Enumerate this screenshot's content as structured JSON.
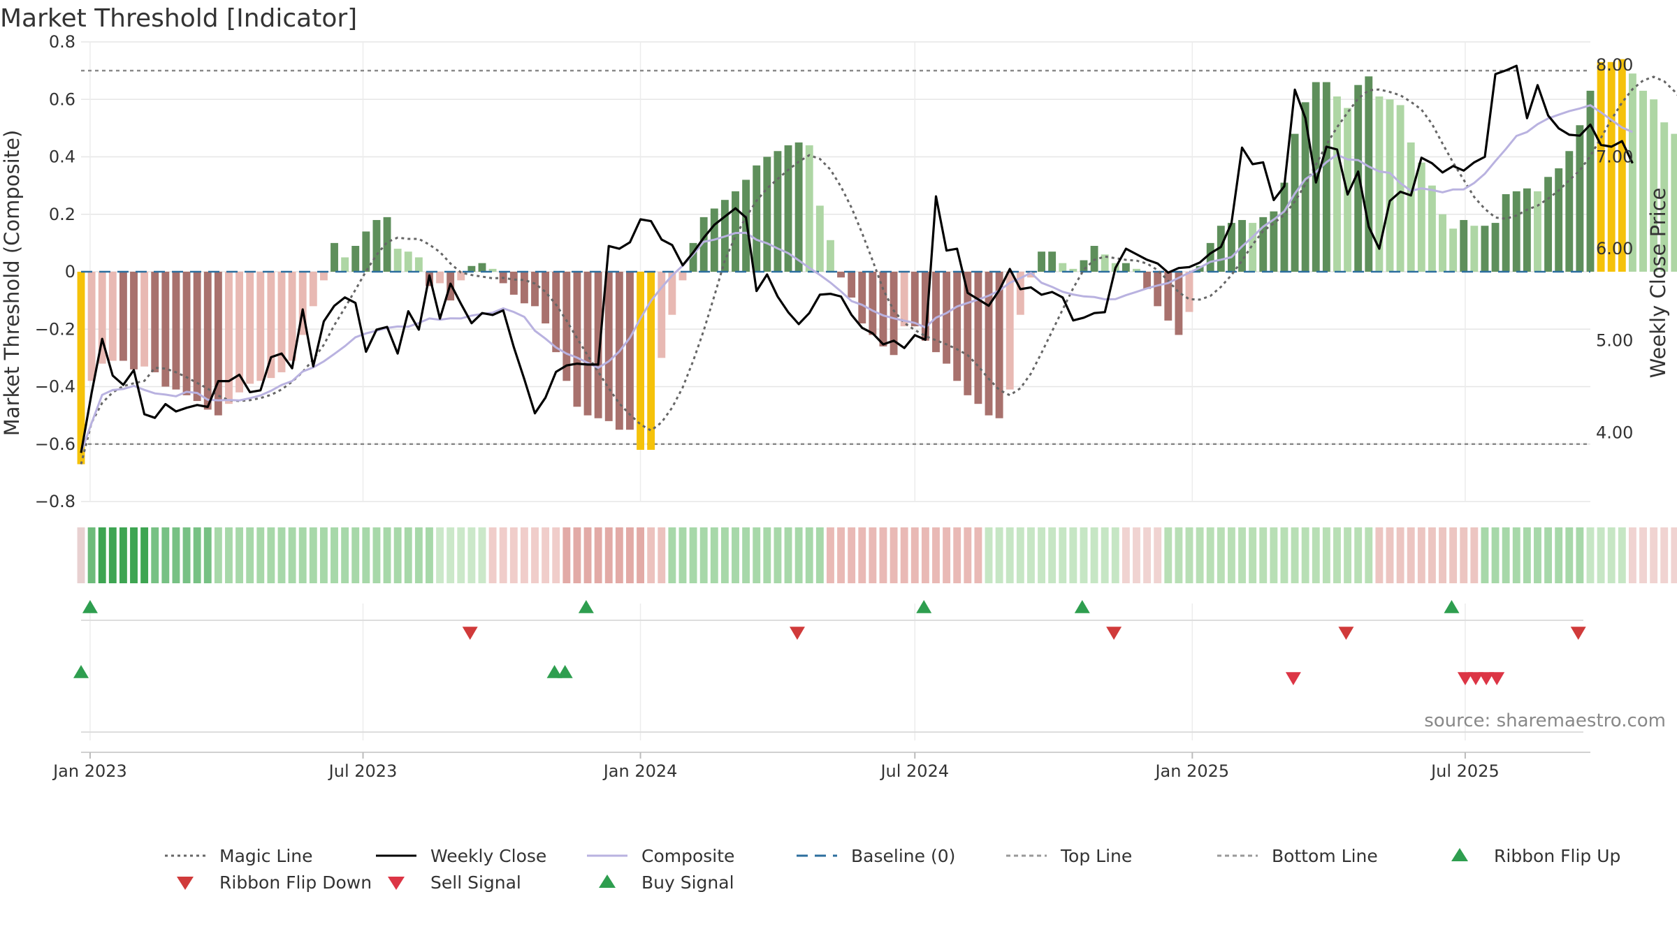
{
  "chart_data": {
    "type": "bar",
    "title": "Market Threshold [Indicator]",
    "ylabel": "Market Threshold (Composite)",
    "y2label": "Weekly Close Price",
    "source": "source: sharemaestro.com",
    "ylim": [
      -0.8,
      0.8
    ],
    "y2lim": [
      3.25,
      8.25
    ],
    "y_ticks": [
      0.8,
      0.6,
      0.4,
      0.2,
      0,
      -0.2,
      -0.4,
      -0.6,
      -0.8
    ],
    "y_tick_labels": [
      "0.8",
      "0.6",
      "0.4",
      "0.2",
      "0",
      "−0.2",
      "−0.4",
      "−0.6",
      "−0.8"
    ],
    "y2_ticks": [
      8.0,
      7.0,
      6.0,
      5.0,
      4.0
    ],
    "y2_tick_labels": [
      "8.00",
      "7.00",
      "6.00",
      "5.00",
      "4.00"
    ],
    "x_range": [
      "2022-12-26",
      "2025-09-22"
    ],
    "x_ticks": [
      {
        "date": "2023-01-01",
        "label": "Jan 2023"
      },
      {
        "date": "2023-07-01",
        "label": "Jul 2023"
      },
      {
        "date": "2024-01-01",
        "label": "Jan 2024"
      },
      {
        "date": "2024-07-01",
        "label": "Jul 2024"
      },
      {
        "date": "2025-01-01",
        "label": "Jan 2025"
      },
      {
        "date": "2025-07-01",
        "label": "Jul 2025"
      }
    ],
    "top_line": 0.7,
    "bottom_line": -0.6,
    "grid": true,
    "legend_position": "bottom",
    "legend": [
      {
        "label": "Magic Line",
        "kind": "dotted",
        "color": "#666666"
      },
      {
        "label": "Weekly Close",
        "kind": "solid",
        "color": "#000000"
      },
      {
        "label": "Composite",
        "kind": "solid",
        "color": "#b9b2e0"
      },
      {
        "label": "Baseline (0)",
        "kind": "dashed",
        "color": "#2c6e9e"
      },
      {
        "label": "Top Line",
        "kind": "dashed",
        "color": "#999999"
      },
      {
        "label": "Bottom Line",
        "kind": "dashed",
        "color": "#999999"
      },
      {
        "label": "Ribbon Flip Up",
        "kind": "triangle-up",
        "color": "#2e9e4f"
      },
      {
        "label": "Ribbon Flip Down",
        "kind": "triangle-down",
        "color": "#d03a3a"
      },
      {
        "label": "Sell Signal",
        "kind": "triangle-down",
        "color": "#dc3545"
      },
      {
        "label": "Buy Signal",
        "kind": "triangle-up",
        "color": "#2e9e4f"
      }
    ],
    "colors": {
      "strong_pos": "#5e8f5b",
      "weak_pos": "#aed6a4",
      "strong_neg": "#a8716d",
      "weak_neg": "#e8b9b3",
      "extreme": "#f5c20a",
      "weekly_close": "#000000",
      "composite": "#b9b2e0",
      "magic_line": "#666666",
      "baseline": "#2c6e9e",
      "threshold": "#999999",
      "up_marker": "#2e9e4f",
      "down_marker": "#d03a3a"
    },
    "start_date": "2022-12-26",
    "bars": [
      -0.67,
      -0.38,
      -0.32,
      -0.31,
      -0.31,
      -0.34,
      -0.33,
      -0.35,
      -0.4,
      -0.41,
      -0.43,
      -0.45,
      -0.48,
      -0.5,
      -0.46,
      -0.42,
      -0.39,
      -0.38,
      -0.37,
      -0.35,
      -0.31,
      -0.22,
      -0.12,
      -0.03,
      0.1,
      0.05,
      0.09,
      0.14,
      0.18,
      0.19,
      0.08,
      0.07,
      0.05,
      -0.05,
      -0.04,
      -0.1,
      -0.03,
      0.02,
      0.03,
      0.01,
      -0.04,
      -0.08,
      -0.11,
      -0.12,
      -0.18,
      -0.28,
      -0.38,
      -0.47,
      -0.5,
      -0.51,
      -0.52,
      -0.55,
      -0.55,
      -0.62,
      -0.62,
      -0.3,
      -0.15,
      -0.03,
      0.1,
      0.19,
      0.22,
      0.25,
      0.28,
      0.32,
      0.37,
      0.4,
      0.42,
      0.44,
      0.45,
      0.44,
      0.23,
      0.11,
      -0.02,
      -0.09,
      -0.18,
      -0.22,
      -0.26,
      -0.29,
      -0.19,
      -0.19,
      -0.24,
      -0.28,
      -0.32,
      -0.38,
      -0.43,
      -0.46,
      -0.5,
      -0.51,
      -0.41,
      -0.15,
      -0.02,
      0.07,
      0.07,
      0.03,
      0.01,
      0.04,
      0.09,
      0.06,
      0.03,
      0.03,
      0.01,
      -0.06,
      -0.12,
      -0.17,
      -0.22,
      -0.14,
      0.02,
      0.1,
      0.16,
      0.17,
      0.18,
      0.17,
      0.19,
      0.21,
      0.31,
      0.48,
      0.59,
      0.66,
      0.66,
      0.61,
      0.57,
      0.65,
      0.68,
      0.61,
      0.6,
      0.58,
      0.45,
      0.38,
      0.3,
      0.2,
      0.15,
      0.18,
      0.16,
      0.16,
      0.17,
      0.27,
      0.28,
      0.29,
      0.28,
      0.33,
      0.36,
      0.42,
      0.51,
      0.63,
      0.73,
      0.73,
      0.74,
      0.69,
      0.63,
      0.6,
      0.52,
      0.48,
      0.42,
      0.38,
      0.34,
      0.27
    ],
    "close": [
      3.78,
      4.43,
      5.02,
      4.62,
      4.52,
      4.68,
      4.2,
      4.16,
      4.31,
      4.23,
      4.27,
      4.3,
      4.28,
      4.56,
      4.56,
      4.63,
      4.44,
      4.46,
      4.82,
      4.86,
      4.7,
      5.34,
      4.72,
      5.21,
      5.38,
      5.47,
      5.41,
      4.88,
      5.12,
      5.15,
      4.86,
      5.32,
      5.12,
      5.71,
      5.24,
      5.62,
      5.4,
      5.19,
      5.3,
      5.28,
      5.33,
      4.93,
      4.58,
      4.21,
      4.38,
      4.66,
      4.73,
      4.75,
      4.74,
      4.74,
      6.03,
      6.0,
      6.07,
      6.32,
      6.3,
      6.1,
      6.04,
      5.82,
      5.96,
      6.12,
      6.26,
      6.35,
      6.44,
      6.34,
      5.54,
      5.72,
      5.48,
      5.31,
      5.18,
      5.3,
      5.5,
      5.51,
      5.48,
      5.28,
      5.14,
      5.08,
      4.96,
      5.0,
      4.92,
      5.06,
      5.01,
      6.57,
      5.98,
      6.0,
      5.52,
      5.45,
      5.38,
      5.55,
      5.78,
      5.56,
      5.58,
      5.5,
      5.53,
      5.47,
      5.22,
      5.25,
      5.3,
      5.31,
      5.79,
      6.0,
      5.94,
      5.88,
      5.84,
      5.74,
      5.79,
      5.8,
      5.85,
      5.95,
      6.02,
      6.28,
      7.1,
      6.92,
      6.94,
      6.53,
      6.68,
      7.73,
      7.42,
      6.72,
      7.11,
      7.08,
      6.59,
      6.84,
      6.24,
      6.0,
      6.52,
      6.62,
      6.58,
      6.99,
      6.93,
      6.83,
      6.9,
      6.85,
      6.94,
      7.0,
      7.9,
      7.94,
      7.99,
      7.42,
      7.78,
      7.45,
      7.31,
      7.24,
      7.23,
      7.35,
      7.13,
      7.11,
      7.17,
      6.93
    ]
  },
  "strips": {
    "ribbon": [
      {
        "start": 0,
        "end": 0,
        "color": "#e8d0d0"
      },
      {
        "start": 1,
        "end": 1,
        "color": "#6dbb7a"
      },
      {
        "start": 2,
        "end": 6,
        "color": "#3ea552"
      },
      {
        "start": 7,
        "end": 12,
        "color": "#77c184"
      },
      {
        "start": 13,
        "end": 33,
        "color": "#a7d8a9"
      },
      {
        "start": 34,
        "end": 38,
        "color": "#cbe8c9"
      },
      {
        "start": 39,
        "end": 45,
        "color": "#f0cdca"
      },
      {
        "start": 46,
        "end": 53,
        "color": "#e2aaa6"
      },
      {
        "start": 54,
        "end": 55,
        "color": "#ecc2be"
      },
      {
        "start": 56,
        "end": 70,
        "color": "#a7d8a9"
      },
      {
        "start": 71,
        "end": 85,
        "color": "#e9b9b5"
      },
      {
        "start": 86,
        "end": 98,
        "color": "#c6e6c4"
      },
      {
        "start": 99,
        "end": 102,
        "color": "#f0d3d1"
      },
      {
        "start": 103,
        "end": 122,
        "color": "#b8dfb5"
      },
      {
        "start": 123,
        "end": 132,
        "color": "#ecc5c1"
      },
      {
        "start": 133,
        "end": 142,
        "color": "#a7d8a9"
      },
      {
        "start": 143,
        "end": 146,
        "color": "#c6e6c4"
      },
      {
        "start": 147,
        "end": 154,
        "color": "#f0d3d1"
      }
    ],
    "flip_up": [
      "2023-01-01",
      "2023-11-26",
      "2024-07-07",
      "2024-10-20",
      "2025-06-22"
    ],
    "flip_down": [
      "2023-09-10",
      "2024-04-14",
      "2024-11-10",
      "2025-04-13",
      "2025-09-14"
    ],
    "buy": [
      "2022-12-26",
      "2023-11-05",
      "2023-11-12"
    ],
    "sell": [
      "2025-03-09",
      "2025-07-01",
      "2025-07-08",
      "2025-07-15",
      "2025-07-22"
    ]
  }
}
